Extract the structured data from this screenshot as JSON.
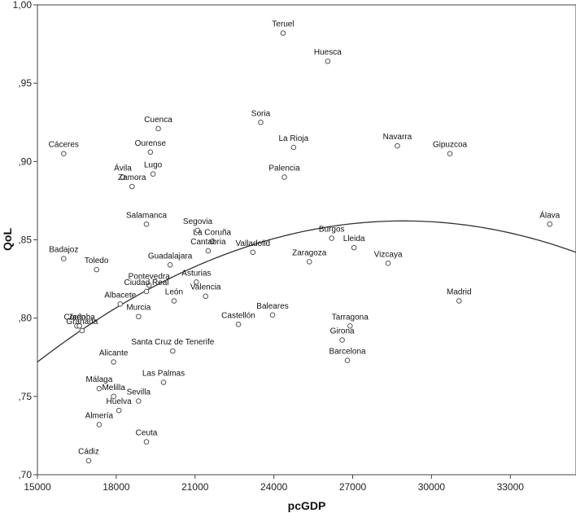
{
  "chart_data": {
    "type": "scatter",
    "xlabel": "pcGDP",
    "ylabel": "QoL",
    "xlim": [
      15000,
      35500
    ],
    "ylim": [
      0.7,
      1.0
    ],
    "x_ticks": [
      15000,
      18000,
      21000,
      24000,
      27000,
      30000,
      33000
    ],
    "x_tick_labels": [
      "15000",
      "18000",
      "21000",
      "24000",
      "27000",
      "30000",
      "33000"
    ],
    "y_ticks": [
      0.7,
      0.75,
      0.8,
      0.85,
      0.9,
      0.95,
      1.0
    ],
    "y_tick_labels": [
      ",70",
      ",75",
      ",80",
      ",85",
      ",90",
      ",95",
      "1,00"
    ],
    "grid": false,
    "point_color": "#555555",
    "curve_color": "#333333",
    "fit_curve": {
      "type": "quadratic",
      "x": [
        15000,
        28600,
        35500
      ],
      "y": [
        0.772,
        0.862,
        0.842
      ]
    },
    "points": [
      {
        "label": "Teruel",
        "x": 24350,
        "y": 0.982
      },
      {
        "label": "Huesca",
        "x": 26050,
        "y": 0.964
      },
      {
        "label": "Soria",
        "x": 23500,
        "y": 0.925
      },
      {
        "label": "Cuenca",
        "x": 19600,
        "y": 0.921
      },
      {
        "label": "La Rioja",
        "x": 24750,
        "y": 0.909
      },
      {
        "label": "Navarra",
        "x": 28700,
        "y": 0.91
      },
      {
        "label": "Gipuzcoa",
        "x": 30700,
        "y": 0.905
      },
      {
        "label": "Cáceres",
        "x": 16000,
        "y": 0.905
      },
      {
        "label": "Ourense",
        "x": 19300,
        "y": 0.906
      },
      {
        "label": "Ávila",
        "x": 18250,
        "y": 0.89
      },
      {
        "label": "Lugo",
        "x": 19400,
        "y": 0.892
      },
      {
        "label": "Palencia",
        "x": 24400,
        "y": 0.89
      },
      {
        "label": "Zamora",
        "x": 18600,
        "y": 0.884
      },
      {
        "label": "Salamanca",
        "x": 19150,
        "y": 0.86
      },
      {
        "label": "Segovia",
        "x": 21100,
        "y": 0.856
      },
      {
        "label": "Álava",
        "x": 34500,
        "y": 0.86
      },
      {
        "label": "Burgos",
        "x": 26200,
        "y": 0.851
      },
      {
        "label": "La Coruña",
        "x": 21650,
        "y": 0.849
      },
      {
        "label": "Lleida",
        "x": 27050,
        "y": 0.845
      },
      {
        "label": "Badajoz",
        "x": 16000,
        "y": 0.838
      },
      {
        "label": "Valladolid",
        "x": 23200,
        "y": 0.842
      },
      {
        "label": "Guadalajara",
        "x": 20050,
        "y": 0.834
      },
      {
        "label": "Cantabria",
        "x": 21500,
        "y": 0.843
      },
      {
        "label": "Zaragoza",
        "x": 25350,
        "y": 0.836
      },
      {
        "label": "Vizcaya",
        "x": 28350,
        "y": 0.835
      },
      {
        "label": "Toledo",
        "x": 17250,
        "y": 0.831
      },
      {
        "label": "Asturias",
        "x": 21050,
        "y": 0.823
      },
      {
        "label": "Pontevedra",
        "x": 19250,
        "y": 0.821
      },
      {
        "label": "Ciudad Real",
        "x": 19150,
        "y": 0.817
      },
      {
        "label": "Valencia",
        "x": 21400,
        "y": 0.814
      },
      {
        "label": "León",
        "x": 20200,
        "y": 0.811
      },
      {
        "label": "Madrid",
        "x": 31050,
        "y": 0.811
      },
      {
        "label": "Albacete",
        "x": 18150,
        "y": 0.809
      },
      {
        "label": "Murcia",
        "x": 18850,
        "y": 0.801
      },
      {
        "label": "Baleares",
        "x": 23950,
        "y": 0.802
      },
      {
        "label": "Castellón",
        "x": 22650,
        "y": 0.796
      },
      {
        "label": "Jaén",
        "x": 16500,
        "y": 0.795
      },
      {
        "label": "Granada",
        "x": 16700,
        "y": 0.792
      },
      {
        "label": "Córdoba",
        "x": 16600,
        "y": 0.795
      },
      {
        "label": "Tarragona",
        "x": 26900,
        "y": 0.795
      },
      {
        "label": "Girona",
        "x": 26600,
        "y": 0.786
      },
      {
        "label": "Santa Cruz de Tenerife",
        "x": 20150,
        "y": 0.779
      },
      {
        "label": "Barcelona",
        "x": 26800,
        "y": 0.773
      },
      {
        "label": "Alicante",
        "x": 17900,
        "y": 0.772
      },
      {
        "label": "Las Palmas",
        "x": 19800,
        "y": 0.759
      },
      {
        "label": "Málaga",
        "x": 17350,
        "y": 0.755
      },
      {
        "label": "Melilla",
        "x": 17900,
        "y": 0.75
      },
      {
        "label": "Sevilla",
        "x": 18850,
        "y": 0.747
      },
      {
        "label": "Huelva",
        "x": 18100,
        "y": 0.741
      },
      {
        "label": "Almería",
        "x": 17350,
        "y": 0.732
      },
      {
        "label": "Ceuta",
        "x": 19150,
        "y": 0.721
      },
      {
        "label": "Cádiz",
        "x": 16950,
        "y": 0.709
      }
    ]
  }
}
